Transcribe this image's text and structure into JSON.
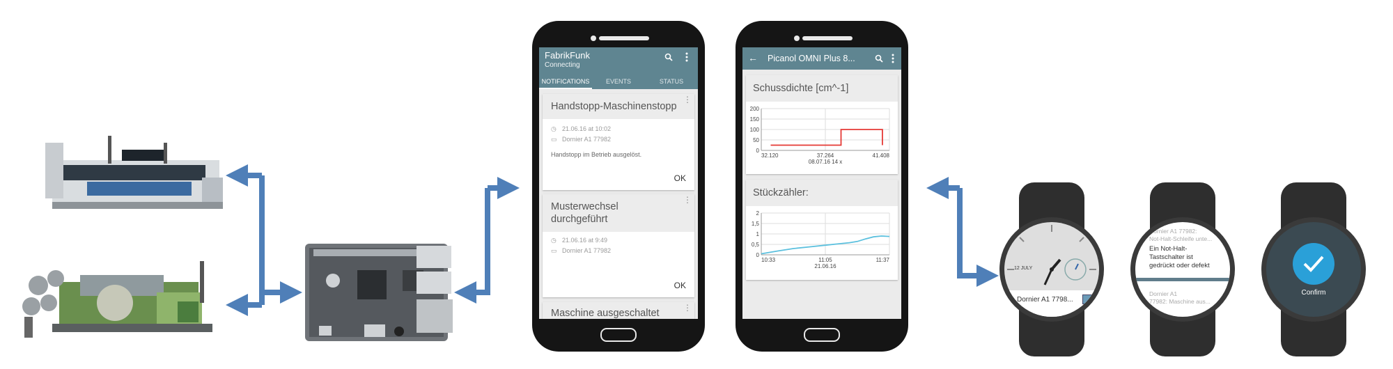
{
  "colors": {
    "arrow": "#4f7fb8",
    "appbar": "#5f8591",
    "chart_line_1": "#e53935",
    "chart_line_2": "#5bc0de",
    "confirm": "#2aa0d8"
  },
  "phone1": {
    "title": "FabrikFunk",
    "subtitle": "Connecting",
    "icons": [
      "search-icon",
      "overflow-menu-icon"
    ],
    "tabs": [
      "NOTIFICATIONS",
      "EVENTS",
      "STATUS"
    ],
    "cards": [
      {
        "title": "Handstopp-Maschinenstopp",
        "time": "21.06.16 at 10:02",
        "machine": "Dornier A1 77982",
        "body": "Handstopp im Betrieb ausgelöst.",
        "action": "OK"
      },
      {
        "title_line1": "Musterwechsel",
        "title_line2": "durchgeführt",
        "time": "21.06.16 at 9:49",
        "machine": "Dornier A1 77982",
        "action": "OK"
      },
      {
        "title": "Maschine ausgeschaltet"
      }
    ]
  },
  "phone2": {
    "title": "Picanol OMNI Plus 8...",
    "icons": [
      "back-arrow-icon",
      "search-icon",
      "overflow-menu-icon"
    ],
    "card1_title": "Schussdichte [cm^-1]",
    "card2_title": "Stückzähler:"
  },
  "chart_data": [
    {
      "type": "line",
      "title": "Schussdichte [cm^-1]",
      "y_ticks": [
        "0",
        "50",
        "100",
        "150",
        "200"
      ],
      "ylim": [
        0,
        200
      ],
      "x_ticks": [
        "32.120",
        "37.264",
        "41.408"
      ],
      "x_sublabel": "08.07.16 14 x",
      "xlim": [
        32.12,
        41.408
      ],
      "series": [
        {
          "color": "#e53935",
          "x": [
            32.8,
            35.5,
            37.9,
            37.9,
            40.9,
            40.9
          ],
          "y": [
            25,
            25,
            25,
            100,
            100,
            25
          ]
        }
      ]
    },
    {
      "type": "line",
      "title": "Stückzähler:",
      "y_ticks": [
        "0",
        "0,5",
        "1",
        "1,5",
        "2"
      ],
      "ylim": [
        0,
        2
      ],
      "x_ticks": [
        "10:33",
        "11:05",
        "11:37"
      ],
      "x_sublabel": "21.06.16",
      "xlim": [
        0,
        64
      ],
      "series": [
        {
          "color": "#5bc0de",
          "x": [
            0,
            8,
            16,
            24,
            32,
            38,
            44,
            48,
            52,
            56,
            60,
            64
          ],
          "y": [
            0.05,
            0.18,
            0.3,
            0.38,
            0.46,
            0.52,
            0.58,
            0.64,
            0.76,
            0.86,
            0.9,
            0.88
          ]
        }
      ]
    }
  ],
  "watch1": {
    "date": "12 JULY",
    "notification": "Dornier A1 7798..."
  },
  "watch2": {
    "line1": "Dornier A1 77982:",
    "line2": "Not-Halt-Schleife unte...",
    "main1": "Ein Not-Halt-",
    "main2": "Tastschalter ist",
    "main3": "gedrückt oder defekt",
    "next1": "Dornier A1",
    "next2": "77982: Maschine aus..."
  },
  "watch3": {
    "label": "Confirm"
  }
}
